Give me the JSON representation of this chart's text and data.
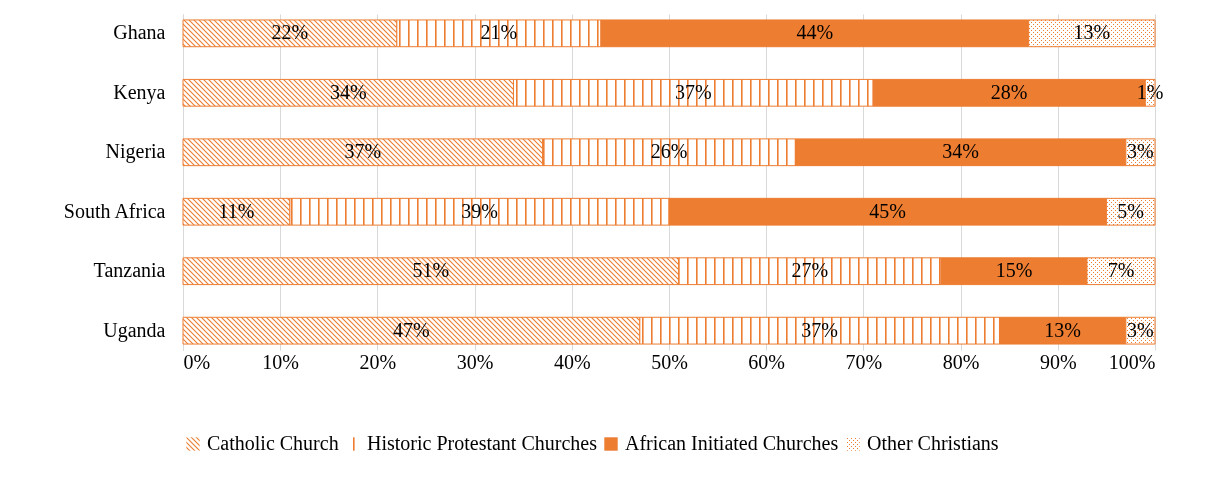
{
  "chart_data": {
    "type": "bar",
    "orientation": "horizontal",
    "stacked": true,
    "categories": [
      "Ghana",
      "Kenya",
      "Nigeria",
      "South Africa",
      "Tanzania",
      "Uganda"
    ],
    "series": [
      {
        "name": "Catholic Church",
        "color": "#ed7d31",
        "values": [
          22,
          34,
          37,
          11,
          51,
          47
        ],
        "value_labels": [
          "22%",
          "34%",
          "37%",
          "11%",
          "51%",
          "47%"
        ]
      },
      {
        "name": "Historic Protestant Churches",
        "color": "#ed7d31",
        "values": [
          21,
          37,
          26,
          39,
          27,
          37
        ],
        "value_labels": [
          "21%",
          "37%",
          "26%",
          "39%",
          "27%",
          "37%"
        ]
      },
      {
        "name": "African Initiated Churches",
        "color": "#ed7d31",
        "values": [
          44,
          28,
          34,
          45,
          15,
          13
        ],
        "value_labels": [
          "44%",
          "28%",
          "34%",
          "45%",
          "15%",
          "13%"
        ]
      },
      {
        "name": "Other Christians",
        "color": "#ed7d31",
        "values": [
          13,
          1,
          3,
          5,
          7,
          3
        ],
        "value_labels": [
          "13%",
          "1%",
          "3%",
          "5%",
          "7%",
          "3%"
        ]
      }
    ],
    "xlim": [
      0,
      100
    ],
    "xticks": [
      {
        "value": 0,
        "label": "0%"
      },
      {
        "value": 10,
        "label": "10%"
      },
      {
        "value": 20,
        "label": "20%"
      },
      {
        "value": 30,
        "label": "30%"
      },
      {
        "value": 40,
        "label": "40%"
      },
      {
        "value": 50,
        "label": "50%"
      },
      {
        "value": 60,
        "label": "60%"
      },
      {
        "value": 70,
        "label": "70%"
      },
      {
        "value": 80,
        "label": "80%"
      },
      {
        "value": 90,
        "label": "90%"
      },
      {
        "value": 100,
        "label": "100%"
      }
    ],
    "grid": "x",
    "legend": "bottom"
  }
}
